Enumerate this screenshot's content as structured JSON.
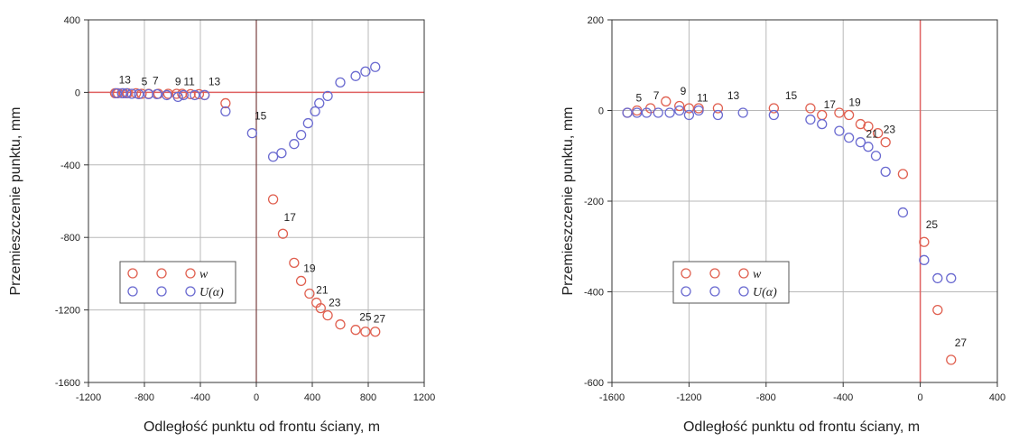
{
  "colors": {
    "w": "#e06050",
    "u": "#6a6ad0",
    "zero_line": "#e06060",
    "grid": "#b8b8b8"
  },
  "chart_data": [
    {
      "type": "scatter",
      "xlabel": "Odległość punktu od frontu ściany, m",
      "ylabel": "Przemieszczenie punktu, mm",
      "xlim": [
        -1200,
        1200
      ],
      "ylim": [
        -1600,
        400
      ],
      "xticks": [
        -1200,
        -800,
        -400,
        0,
        400,
        800,
        1200
      ],
      "yticks": [
        400,
        0,
        -400,
        -800,
        -1200,
        -1600
      ],
      "xtick_labels": [
        "-1200",
        "-800",
        "-400",
        "0",
        "400",
        "800",
        "1200"
      ],
      "ytick_labels": [
        "400",
        "0",
        "-400",
        "-800",
        "-1200",
        "-1600"
      ],
      "grid": true,
      "legend": {
        "placement": "lower-left",
        "entries": [
          {
            "label": "w",
            "series": "w"
          },
          {
            "label": "U(α)",
            "series": "u"
          }
        ]
      },
      "series": [
        {
          "name": "w",
          "color_key": "w",
          "points": [
            [
              -1010,
              -5
            ],
            [
              -990,
              -5
            ],
            [
              -950,
              -5
            ],
            [
              -920,
              -5
            ],
            [
              -860,
              -5
            ],
            [
              -820,
              -8
            ],
            [
              -770,
              -8
            ],
            [
              -700,
              -8
            ],
            [
              -630,
              -8
            ],
            [
              -570,
              -8
            ],
            [
              -530,
              -8
            ],
            [
              -470,
              -10
            ],
            [
              -410,
              -10
            ],
            [
              -370,
              -15
            ],
            [
              -220,
              -60
            ],
            [
              120,
              -590
            ],
            [
              190,
              -780
            ],
            [
              270,
              -940
            ],
            [
              320,
              -1040
            ],
            [
              380,
              -1110
            ],
            [
              430,
              -1160
            ],
            [
              460,
              -1190
            ],
            [
              510,
              -1230
            ],
            [
              600,
              -1280
            ],
            [
              710,
              -1310
            ],
            [
              780,
              -1320
            ],
            [
              850,
              -1320
            ]
          ]
        },
        {
          "name": "U(α)",
          "color_key": "u",
          "points": [
            [
              -1000,
              -5
            ],
            [
              -960,
              -5
            ],
            [
              -930,
              -5
            ],
            [
              -890,
              -8
            ],
            [
              -840,
              -10
            ],
            [
              -770,
              -10
            ],
            [
              -710,
              -10
            ],
            [
              -640,
              -15
            ],
            [
              -560,
              -25
            ],
            [
              -520,
              -15
            ],
            [
              -440,
              -15
            ],
            [
              -370,
              -15
            ],
            [
              -220,
              -105
            ],
            [
              -30,
              -225
            ],
            [
              120,
              -355
            ],
            [
              180,
              -335
            ],
            [
              270,
              -285
            ],
            [
              320,
              -235
            ],
            [
              370,
              -170
            ],
            [
              420,
              -105
            ],
            [
              450,
              -60
            ],
            [
              510,
              -20
            ],
            [
              600,
              55
            ],
            [
              710,
              90
            ],
            [
              780,
              115
            ],
            [
              850,
              140
            ]
          ]
        }
      ],
      "point_labels": [
        {
          "text": "13",
          "x": -940,
          "y": 50
        },
        {
          "text": "5",
          "x": -800,
          "y": 40
        },
        {
          "text": "7",
          "x": -720,
          "y": 45
        },
        {
          "text": "9",
          "x": -560,
          "y": 40
        },
        {
          "text": "11",
          "x": -480,
          "y": 40
        },
        {
          "text": "13",
          "x": -300,
          "y": 40
        },
        {
          "text": "15",
          "x": 30,
          "y": -150
        },
        {
          "text": "17",
          "x": 240,
          "y": -710
        },
        {
          "text": "19",
          "x": 380,
          "y": -990
        },
        {
          "text": "21",
          "x": 470,
          "y": -1110
        },
        {
          "text": "23",
          "x": 560,
          "y": -1180
        },
        {
          "text": "25",
          "x": 780,
          "y": -1260
        },
        {
          "text": "27",
          "x": 880,
          "y": -1270
        }
      ]
    },
    {
      "type": "scatter",
      "xlabel": "Odległość punktu od frontu ściany, m",
      "ylabel": "Przemieszczenie punktu, mm",
      "xlim": [
        -1600,
        400
      ],
      "ylim": [
        -600,
        200
      ],
      "xticks": [
        -1600,
        -1200,
        -800,
        -400,
        0,
        400
      ],
      "yticks": [
        200,
        0,
        -200,
        -400,
        -600
      ],
      "xtick_labels": [
        "-1600",
        "-1200",
        "-800",
        "-400",
        "0",
        "400"
      ],
      "ytick_labels": [
        "200",
        "0",
        "-200",
        "-400",
        "-600"
      ],
      "grid": true,
      "legend": {
        "placement": "lower-center",
        "entries": [
          {
            "label": "w",
            "series": "w"
          },
          {
            "label": "U(α)",
            "series": "u"
          }
        ]
      },
      "series": [
        {
          "name": "w",
          "color_key": "w",
          "points": [
            [
              -1520,
              -5
            ],
            [
              -1470,
              0
            ],
            [
              -1400,
              5
            ],
            [
              -1320,
              20
            ],
            [
              -1250,
              10
            ],
            [
              -1200,
              5
            ],
            [
              -1150,
              5
            ],
            [
              -1050,
              5
            ],
            [
              -760,
              5
            ],
            [
              -570,
              5
            ],
            [
              -510,
              -10
            ],
            [
              -420,
              -5
            ],
            [
              -370,
              -10
            ],
            [
              -310,
              -30
            ],
            [
              -270,
              -35
            ],
            [
              -220,
              -50
            ],
            [
              -180,
              -70
            ],
            [
              -90,
              -140
            ],
            [
              20,
              -290
            ],
            [
              90,
              -440
            ],
            [
              160,
              -550
            ]
          ]
        },
        {
          "name": "U(α)",
          "color_key": "u",
          "points": [
            [
              -1520,
              -5
            ],
            [
              -1470,
              -5
            ],
            [
              -1420,
              -5
            ],
            [
              -1360,
              -5
            ],
            [
              -1300,
              -5
            ],
            [
              -1250,
              0
            ],
            [
              -1200,
              -10
            ],
            [
              -1150,
              0
            ],
            [
              -1050,
              -10
            ],
            [
              -920,
              -5
            ],
            [
              -760,
              -10
            ],
            [
              -570,
              -20
            ],
            [
              -510,
              -30
            ],
            [
              -420,
              -45
            ],
            [
              -370,
              -60
            ],
            [
              -310,
              -70
            ],
            [
              -270,
              -80
            ],
            [
              -230,
              -100
            ],
            [
              -180,
              -135
            ],
            [
              -90,
              -225
            ],
            [
              20,
              -330
            ],
            [
              90,
              -370
            ],
            [
              160,
              -370
            ]
          ]
        }
      ],
      "point_labels": [
        {
          "text": "5",
          "x": -1460,
          "y": 20
        },
        {
          "text": "7",
          "x": -1370,
          "y": 25
        },
        {
          "text": "9",
          "x": -1230,
          "y": 35
        },
        {
          "text": "11",
          "x": -1130,
          "y": 20
        },
        {
          "text": "13",
          "x": -970,
          "y": 25
        },
        {
          "text": "15",
          "x": -670,
          "y": 25
        },
        {
          "text": "17",
          "x": -470,
          "y": 5
        },
        {
          "text": "19",
          "x": -340,
          "y": 10
        },
        {
          "text": "21",
          "x": -250,
          "y": -60
        },
        {
          "text": "23",
          "x": -160,
          "y": -50
        },
        {
          "text": "25",
          "x": 60,
          "y": -260
        },
        {
          "text": "27",
          "x": 210,
          "y": -520
        }
      ]
    }
  ]
}
